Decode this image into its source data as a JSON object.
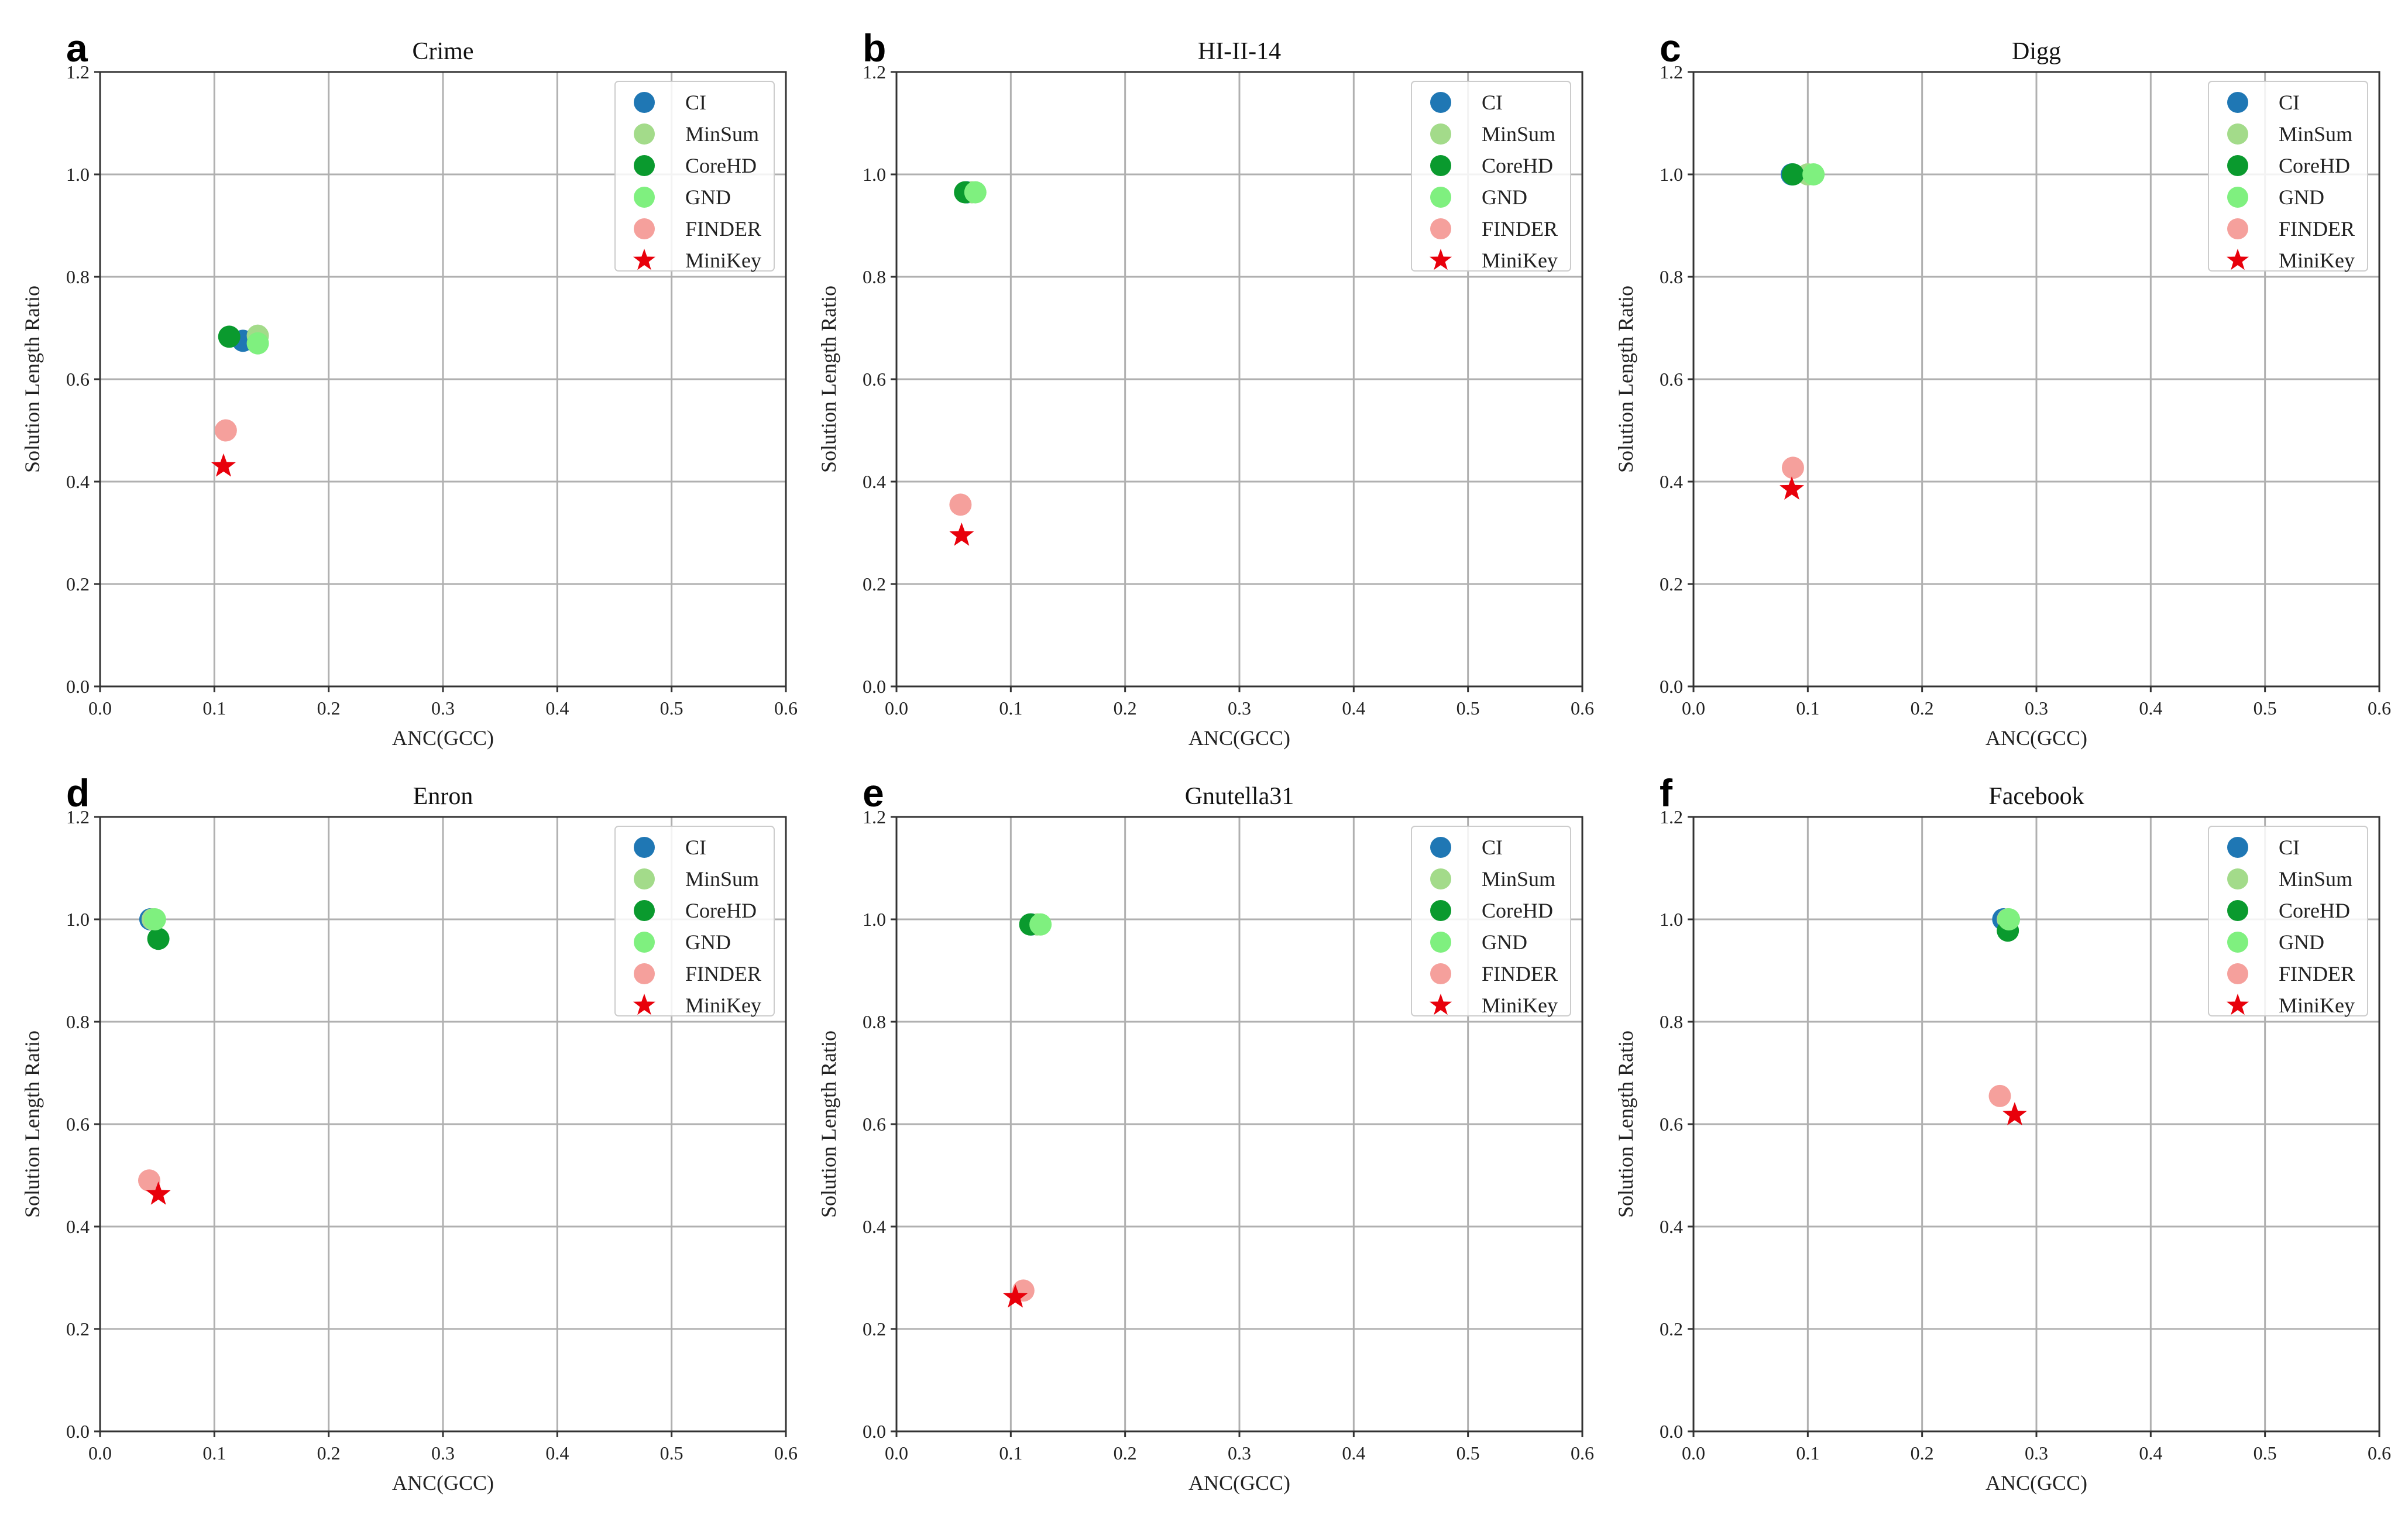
{
  "chart_data": [
    {
      "panel": "a",
      "type": "scatter",
      "title": "Crime",
      "xlabel": "ANC(GCC)",
      "ylabel": "Solution Length Ratio",
      "xlim": [
        0.0,
        0.6
      ],
      "ylim": [
        0.0,
        1.2
      ],
      "xticks": [
        "0.0",
        "0.1",
        "0.2",
        "0.3",
        "0.4",
        "0.5",
        "0.6"
      ],
      "yticks": [
        "0.0",
        "0.2",
        "0.4",
        "0.6",
        "0.8",
        "1.0",
        "1.2"
      ],
      "grid": true,
      "legend_position": "top-right",
      "series": [
        {
          "name": "CI",
          "marker": "circle",
          "color": "#1f77b4",
          "x": 0.125,
          "y": 0.675
        },
        {
          "name": "MinSum",
          "marker": "circle",
          "color": "#a3db8a",
          "x": 0.138,
          "y": 0.685
        },
        {
          "name": "CoreHD",
          "marker": "circle",
          "color": "#0a9a2e",
          "x": 0.113,
          "y": 0.683
        },
        {
          "name": "GND",
          "marker": "circle",
          "color": "#7ff07f",
          "x": 0.138,
          "y": 0.67
        },
        {
          "name": "FINDER",
          "marker": "circle",
          "color": "#f5a09c",
          "x": 0.11,
          "y": 0.5
        },
        {
          "name": "MiniKey",
          "marker": "star",
          "color": "#e8000b",
          "x": 0.108,
          "y": 0.43
        }
      ]
    },
    {
      "panel": "b",
      "type": "scatter",
      "title": "HI-II-14",
      "xlabel": "ANC(GCC)",
      "ylabel": "Solution Length Ratio",
      "xlim": [
        0.0,
        0.6
      ],
      "ylim": [
        0.0,
        1.2
      ],
      "xticks": [
        "0.0",
        "0.1",
        "0.2",
        "0.3",
        "0.4",
        "0.5",
        "0.6"
      ],
      "yticks": [
        "0.0",
        "0.2",
        "0.4",
        "0.6",
        "0.8",
        "1.0",
        "1.2"
      ],
      "grid": true,
      "legend_position": "top-right",
      "series": [
        {
          "name": "CI",
          "marker": "circle",
          "color": "#1f77b4",
          "x": 0.062,
          "y": 0.965
        },
        {
          "name": "MinSum",
          "marker": "circle",
          "color": "#a3db8a",
          "x": 0.066,
          "y": 0.965
        },
        {
          "name": "CoreHD",
          "marker": "circle",
          "color": "#0a9a2e",
          "x": 0.06,
          "y": 0.965
        },
        {
          "name": "GND",
          "marker": "circle",
          "color": "#7ff07f",
          "x": 0.069,
          "y": 0.965
        },
        {
          "name": "FINDER",
          "marker": "circle",
          "color": "#f5a09c",
          "x": 0.056,
          "y": 0.355
        },
        {
          "name": "MiniKey",
          "marker": "star",
          "color": "#e8000b",
          "x": 0.057,
          "y": 0.295
        }
      ]
    },
    {
      "panel": "c",
      "type": "scatter",
      "title": "Digg",
      "xlabel": "ANC(GCC)",
      "ylabel": "Solution Length Ratio",
      "xlim": [
        0.0,
        0.6
      ],
      "ylim": [
        0.0,
        1.2
      ],
      "xticks": [
        "0.0",
        "0.1",
        "0.2",
        "0.3",
        "0.4",
        "0.5",
        "0.6"
      ],
      "yticks": [
        "0.0",
        "0.2",
        "0.4",
        "0.6",
        "0.8",
        "1.0",
        "1.2"
      ],
      "grid": true,
      "legend_position": "top-right",
      "series": [
        {
          "name": "CI",
          "marker": "circle",
          "color": "#1f77b4",
          "x": 0.086,
          "y": 1.0
        },
        {
          "name": "MinSum",
          "marker": "circle",
          "color": "#a3db8a",
          "x": 0.1,
          "y": 1.0
        },
        {
          "name": "CoreHD",
          "marker": "circle",
          "color": "#0a9a2e",
          "x": 0.087,
          "y": 1.0
        },
        {
          "name": "GND",
          "marker": "circle",
          "color": "#7ff07f",
          "x": 0.105,
          "y": 1.0
        },
        {
          "name": "FINDER",
          "marker": "circle",
          "color": "#f5a09c",
          "x": 0.087,
          "y": 0.427
        },
        {
          "name": "MiniKey",
          "marker": "star",
          "color": "#e8000b",
          "x": 0.086,
          "y": 0.385
        }
      ]
    },
    {
      "panel": "d",
      "type": "scatter",
      "title": "Enron",
      "xlabel": "ANC(GCC)",
      "ylabel": "Solution Length Ratio",
      "xlim": [
        0.0,
        0.6
      ],
      "ylim": [
        0.0,
        1.2
      ],
      "xticks": [
        "0.0",
        "0.1",
        "0.2",
        "0.3",
        "0.4",
        "0.5",
        "0.6"
      ],
      "yticks": [
        "0.0",
        "0.2",
        "0.4",
        "0.6",
        "0.8",
        "1.0",
        "1.2"
      ],
      "grid": true,
      "legend_position": "top-right",
      "series": [
        {
          "name": "CI",
          "marker": "circle",
          "color": "#1f77b4",
          "x": 0.044,
          "y": 1.0
        },
        {
          "name": "MinSum",
          "marker": "circle",
          "color": "#a3db8a",
          "x": 0.046,
          "y": 1.0
        },
        {
          "name": "CoreHD",
          "marker": "circle",
          "color": "#0a9a2e",
          "x": 0.051,
          "y": 0.962
        },
        {
          "name": "GND",
          "marker": "circle",
          "color": "#7ff07f",
          "x": 0.048,
          "y": 1.0
        },
        {
          "name": "FINDER",
          "marker": "circle",
          "color": "#f5a09c",
          "x": 0.043,
          "y": 0.49
        },
        {
          "name": "MiniKey",
          "marker": "star",
          "color": "#e8000b",
          "x": 0.051,
          "y": 0.463
        }
      ]
    },
    {
      "panel": "e",
      "type": "scatter",
      "title": "Gnutella31",
      "xlabel": "ANC(GCC)",
      "ylabel": "Solution Length Ratio",
      "xlim": [
        0.0,
        0.6
      ],
      "ylim": [
        0.0,
        1.2
      ],
      "xticks": [
        "0.0",
        "0.1",
        "0.2",
        "0.3",
        "0.4",
        "0.5",
        "0.6"
      ],
      "yticks": [
        "0.0",
        "0.2",
        "0.4",
        "0.6",
        "0.8",
        "1.0",
        "1.2"
      ],
      "grid": true,
      "legend_position": "top-right",
      "series": [
        {
          "name": "CI",
          "marker": "circle",
          "color": "#1f77b4",
          "x": 0.118,
          "y": 0.99
        },
        {
          "name": "MinSum",
          "marker": "circle",
          "color": "#a3db8a",
          "x": 0.123,
          "y": 0.99
        },
        {
          "name": "CoreHD",
          "marker": "circle",
          "color": "#0a9a2e",
          "x": 0.117,
          "y": 0.99
        },
        {
          "name": "GND",
          "marker": "circle",
          "color": "#7ff07f",
          "x": 0.126,
          "y": 0.99
        },
        {
          "name": "FINDER",
          "marker": "circle",
          "color": "#f5a09c",
          "x": 0.111,
          "y": 0.275
        },
        {
          "name": "MiniKey",
          "marker": "star",
          "color": "#e8000b",
          "x": 0.104,
          "y": 0.262
        }
      ]
    },
    {
      "panel": "f",
      "type": "scatter",
      "title": "Facebook",
      "xlabel": "ANC(GCC)",
      "ylabel": "Solution Length Ratio",
      "xlim": [
        0.0,
        0.6
      ],
      "ylim": [
        0.0,
        1.2
      ],
      "xticks": [
        "0.0",
        "0.1",
        "0.2",
        "0.3",
        "0.4",
        "0.5",
        "0.6"
      ],
      "yticks": [
        "0.0",
        "0.2",
        "0.4",
        "0.6",
        "0.8",
        "1.0",
        "1.2"
      ],
      "grid": true,
      "legend_position": "top-right",
      "series": [
        {
          "name": "CI",
          "marker": "circle",
          "color": "#1f77b4",
          "x": 0.271,
          "y": 1.0
        },
        {
          "name": "MinSum",
          "marker": "circle",
          "color": "#a3db8a",
          "x": 0.275,
          "y": 1.0
        },
        {
          "name": "CoreHD",
          "marker": "circle",
          "color": "#0a9a2e",
          "x": 0.275,
          "y": 0.978
        },
        {
          "name": "GND",
          "marker": "circle",
          "color": "#7ff07f",
          "x": 0.276,
          "y": 1.0
        },
        {
          "name": "FINDER",
          "marker": "circle",
          "color": "#f5a09c",
          "x": 0.268,
          "y": 0.655
        },
        {
          "name": "MiniKey",
          "marker": "star",
          "color": "#e8000b",
          "x": 0.281,
          "y": 0.618
        }
      ]
    }
  ]
}
